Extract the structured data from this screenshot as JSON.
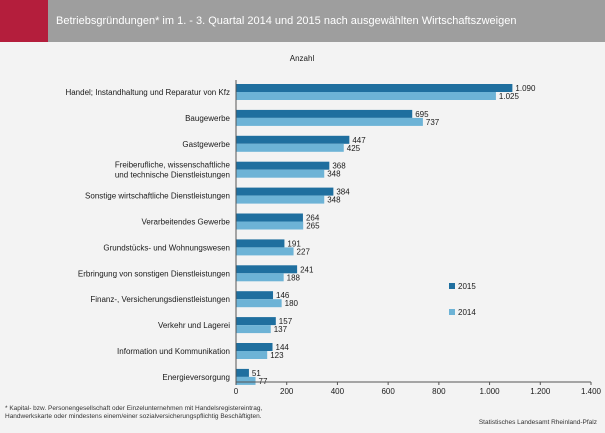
{
  "header": {
    "title": "Betriebsgründungen* im 1. - 3. Quartal 2014 und 2015  nach ausgewählten Wirtschaftszweigen"
  },
  "colors": {
    "series_2015": "#1f6f9f",
    "series_2014": "#6db3d6",
    "accent": "#b41e3c",
    "header_bg": "#9e9e9e"
  },
  "chart_data": {
    "type": "bar",
    "orientation": "horizontal",
    "unit_label": "Anzahl",
    "categories": [
      [
        "Handel; Instandhaltung und Reparatur von Kfz"
      ],
      [
        "Baugewerbe"
      ],
      [
        "Gastgewerbe"
      ],
      [
        "Freiberufliche, wissenschaftliche",
        "und technische Dienstleistungen"
      ],
      [
        "Sonstige wirtschaftliche Dienstleistungen"
      ],
      [
        "Verarbeitendes Gewerbe"
      ],
      [
        "Grundstücks- und Wohnungswesen"
      ],
      [
        "Erbringung von sonstigen Dienstleistungen"
      ],
      [
        "Finanz-, Versicherungsdienstleistungen"
      ],
      [
        "Verkehr und Lagerei"
      ],
      [
        "Information und Kommunikation"
      ],
      [
        "Energieversorgung"
      ]
    ],
    "series": [
      {
        "name": "2015",
        "values": [
          1090,
          695,
          447,
          368,
          384,
          264,
          191,
          241,
          146,
          157,
          144,
          51
        ],
        "labels": [
          "1.090",
          "695",
          "447",
          "368",
          "384",
          "264",
          "191",
          "241",
          "146",
          "157",
          "144",
          "51"
        ]
      },
      {
        "name": "2014",
        "values": [
          1025,
          737,
          425,
          348,
          348,
          265,
          227,
          188,
          180,
          137,
          123,
          77
        ],
        "labels": [
          "1.025",
          "737",
          "425",
          "348",
          "348",
          "265",
          "227",
          "188",
          "180",
          "137",
          "123",
          "77"
        ]
      }
    ],
    "xlim": [
      0,
      1400
    ],
    "xticks": [
      0,
      200,
      400,
      600,
      800,
      1000,
      1200,
      1400
    ],
    "xtick_labels": [
      "0",
      "200",
      "400",
      "600",
      "800",
      "1.000",
      "1.200",
      "1.400"
    ],
    "grid": false,
    "legend_position": "right"
  },
  "footnote": {
    "line1": "* Kapital- bzw. Personengesellschaft oder Einzelunternehmen  mit  Handelsregistereintrag,",
    "line2": "Handwerkskarte oder mindestens einem/einer sozialversicherungspflichtig Beschäftigten."
  },
  "source": "Statistisches Landesamt Rheinland-Pfalz"
}
